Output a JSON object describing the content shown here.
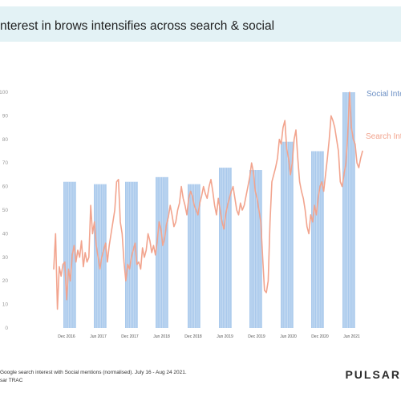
{
  "header": {
    "title": "nterest in brows intensifies across search & social"
  },
  "footer": {
    "note_line1": "Google search interest with Social mentions (normalised). July 16 - Aug 24 2021.",
    "note_line2": "sar TRAC",
    "brand": "PULSAR"
  },
  "chart_data": {
    "type": "bar+line",
    "ylim": [
      0,
      100
    ],
    "y_ticks": [
      "0",
      "10",
      "20",
      "30",
      "40",
      "50",
      "60",
      "70",
      "80",
      "90",
      "100"
    ],
    "x_ticks": [
      "Dec 2016",
      "Jun 2017",
      "Dec 2017",
      "Jun 2018",
      "Dec 2018",
      "Jun 2019",
      "Dec 2019",
      "Jun 2020",
      "Dec 2020",
      "Jun 2021"
    ],
    "colors": {
      "social": "#a9c9ec",
      "social_label": "#6b8fc4",
      "search": "#f2a48e",
      "axis": "#999999"
    },
    "series": [
      {
        "name": "Social Interest",
        "label": "Social Intere",
        "type": "bar",
        "values": [
          62,
          61,
          62,
          64,
          61,
          68,
          67,
          79,
          75,
          100
        ]
      },
      {
        "name": "Search Interest",
        "label": "Search Int",
        "type": "line",
        "values": [
          25,
          40,
          8,
          26,
          22,
          27,
          28,
          12,
          25,
          20,
          31,
          35,
          28,
          33,
          30,
          37,
          26,
          32,
          28,
          30,
          52,
          40,
          45,
          35,
          30,
          25,
          30,
          33,
          36,
          28,
          35,
          40,
          45,
          50,
          62,
          63,
          45,
          40,
          28,
          20,
          27,
          25,
          30,
          33,
          36,
          27,
          28,
          25,
          34,
          30,
          33,
          40,
          37,
          32,
          35,
          31,
          37,
          45,
          42,
          35,
          38,
          44,
          47,
          52,
          48,
          43,
          45,
          50,
          53,
          60,
          55,
          52,
          48,
          55,
          58,
          56,
          52,
          50,
          48,
          53,
          56,
          60,
          57,
          55,
          60,
          63,
          58,
          52,
          48,
          55,
          50,
          45,
          42,
          48,
          52,
          55,
          58,
          60,
          55,
          50,
          48,
          53,
          50,
          52,
          56,
          60,
          64,
          70,
          66,
          58,
          55,
          50,
          45,
          30,
          16,
          15,
          20,
          45,
          62,
          65,
          68,
          72,
          80,
          78,
          85,
          88,
          76,
          72,
          65,
          70,
          80,
          84,
          72,
          62,
          58,
          55,
          50,
          43,
          40,
          48,
          45,
          52,
          48,
          55,
          60,
          62,
          58,
          65,
          72,
          80,
          90,
          88,
          85,
          80,
          75,
          62,
          60,
          65,
          70,
          82,
          100,
          85,
          80,
          78,
          70,
          68,
          72,
          75
        ]
      }
    ]
  }
}
